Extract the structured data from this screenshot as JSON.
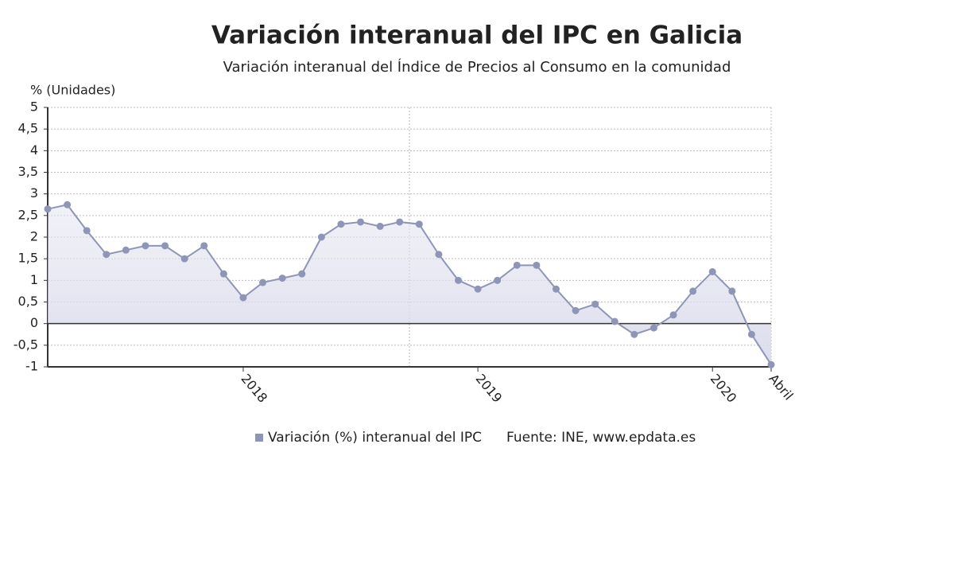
{
  "chart_data": {
    "type": "line",
    "title": "Variación interanual del IPC en Galicia",
    "subtitle": "Variación interanual del Índice de Precios al Consumo en la comunidad",
    "y_label": "% (Unidades)",
    "source": "Fuente: INE, www.epdata.es",
    "categories": [
      null,
      null,
      null,
      null,
      null,
      null,
      null,
      null,
      null,
      null,
      "2018",
      null,
      null,
      null,
      null,
      null,
      null,
      null,
      null,
      null,
      null,
      null,
      "2019",
      null,
      null,
      null,
      null,
      null,
      null,
      null,
      null,
      null,
      null,
      null,
      "2020",
      null,
      null,
      "Abril"
    ],
    "series": [
      {
        "name": "Variación (%) interanual del IPC",
        "color": "#8f95b6",
        "values": [
          2.65,
          2.75,
          2.15,
          1.6,
          1.7,
          1.8,
          1.8,
          1.5,
          1.8,
          1.15,
          0.6,
          0.95,
          1.05,
          1.15,
          2.0,
          2.3,
          2.35,
          2.25,
          2.35,
          2.3,
          1.6,
          1.0,
          0.8,
          1.0,
          1.35,
          1.35,
          0.8,
          0.3,
          0.45,
          0.05,
          -0.25,
          -0.1,
          0.2,
          0.75,
          1.2,
          0.75,
          -0.25,
          -0.95
        ]
      }
    ],
    "ylim": [
      -1,
      5
    ],
    "yticks": [
      5,
      {
        "value": 4.5,
        "label": "4,5"
      },
      4,
      {
        "value": 3.5,
        "label": "3,5"
      },
      3,
      {
        "value": 2.5,
        "label": "2,5"
      },
      2,
      {
        "value": 1.5,
        "label": "1,5"
      },
      1,
      {
        "value": 0.5,
        "label": "0,5"
      },
      0,
      {
        "value": -0.5,
        "label": "-0,5"
      },
      -1
    ],
    "grid": true
  }
}
